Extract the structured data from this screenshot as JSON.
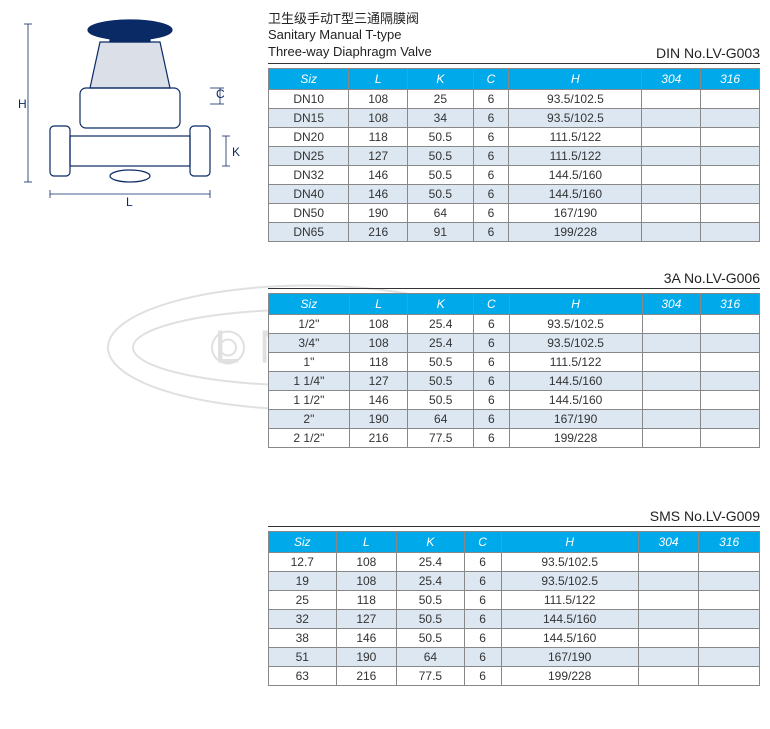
{
  "colors": {
    "header_bg": "#00aaea",
    "header_text": "#ffffff",
    "row_alt_bg": "#dce7f2",
    "row_bg": "#ffffff",
    "border": "#888888",
    "text": "#333333",
    "watermark": "#888888"
  },
  "title": {
    "cn": "卫生级手动T型三通隔膜阀",
    "en1": "Sanitary Manual T-type",
    "en2": "Three-way Diaphragm Valve"
  },
  "columns": [
    "Siz",
    "L",
    "K",
    "C",
    "H",
    "304",
    "316"
  ],
  "tables": [
    {
      "part_no": "DIN No.LV-G003",
      "rows": [
        [
          "DN10",
          "108",
          "25",
          "6",
          "93.5/102.5",
          "",
          ""
        ],
        [
          "DN15",
          "108",
          "34",
          "6",
          "93.5/102.5",
          "",
          ""
        ],
        [
          "DN20",
          "118",
          "50.5",
          "6",
          "111.5/122",
          "",
          ""
        ],
        [
          "DN25",
          "127",
          "50.5",
          "6",
          "111.5/122",
          "",
          ""
        ],
        [
          "DN32",
          "146",
          "50.5",
          "6",
          "144.5/160",
          "",
          ""
        ],
        [
          "DN40",
          "146",
          "50.5",
          "6",
          "144.5/160",
          "",
          ""
        ],
        [
          "DN50",
          "190",
          "64",
          "6",
          "167/190",
          "",
          ""
        ],
        [
          "DN65",
          "216",
          "91",
          "6",
          "199/228",
          "",
          ""
        ]
      ]
    },
    {
      "part_no": "3A No.LV-G006",
      "rows": [
        [
          "1/2\"",
          "108",
          "25.4",
          "6",
          "93.5/102.5",
          "",
          ""
        ],
        [
          "3/4\"",
          "108",
          "25.4",
          "6",
          "93.5/102.5",
          "",
          ""
        ],
        [
          "1\"",
          "118",
          "50.5",
          "6",
          "111.5/122",
          "",
          ""
        ],
        [
          "1 1/4\"",
          "127",
          "50.5",
          "6",
          "144.5/160",
          "",
          ""
        ],
        [
          "1 1/2\"",
          "146",
          "50.5",
          "6",
          "144.5/160",
          "",
          ""
        ],
        [
          "2\"",
          "190",
          "64",
          "6",
          "167/190",
          "",
          ""
        ],
        [
          "2 1/2\"",
          "216",
          "77.5",
          "6",
          "199/228",
          "",
          ""
        ]
      ]
    },
    {
      "part_no": "SMS  No.LV-G009",
      "rows": [
        [
          "12.7",
          "108",
          "25.4",
          "6",
          "93.5/102.5",
          "",
          ""
        ],
        [
          "19",
          "108",
          "25.4",
          "6",
          "93.5/102.5",
          "",
          ""
        ],
        [
          "25",
          "118",
          "50.5",
          "6",
          "111.5/122",
          "",
          ""
        ],
        [
          "32",
          "127",
          "50.5",
          "6",
          "144.5/160",
          "",
          ""
        ],
        [
          "38",
          "146",
          "50.5",
          "6",
          "144.5/160",
          "",
          ""
        ],
        [
          "51",
          "190",
          "64",
          "6",
          "167/190",
          "",
          ""
        ],
        [
          "63",
          "216",
          "77.5",
          "6",
          "199/228",
          "",
          ""
        ]
      ]
    }
  ],
  "watermark_text": "L    NGVA"
}
